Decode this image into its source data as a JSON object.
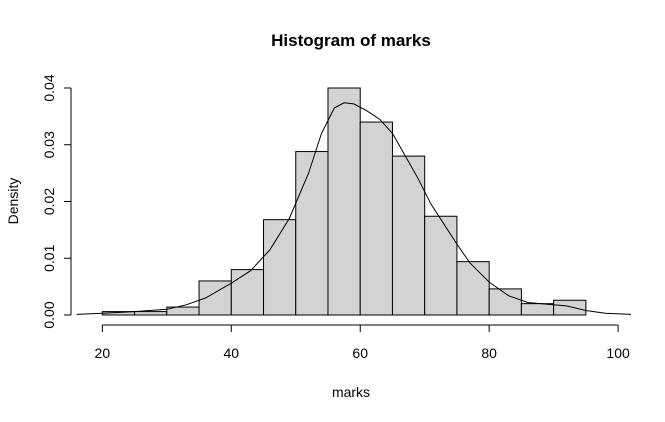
{
  "chart_data": {
    "type": "bar",
    "title": "Histogram of marks",
    "xlabel": "marks",
    "ylabel": "Density",
    "xlim": [
      17,
      102
    ],
    "ylim": [
      0,
      0.04
    ],
    "x_ticks": [
      20,
      40,
      60,
      80,
      100
    ],
    "x_tick_labels": [
      "20",
      "40",
      "60",
      "80",
      "100"
    ],
    "y_ticks": [
      0,
      0.01,
      0.02,
      0.03,
      0.04
    ],
    "y_tick_labels": [
      "0.00",
      "0.01",
      "0.02",
      "0.03",
      "0.04"
    ],
    "bar_color": "#d3d3d3",
    "bins": [
      {
        "start": 20,
        "end": 25,
        "density": 0.0006
      },
      {
        "start": 25,
        "end": 30,
        "density": 0.0006
      },
      {
        "start": 30,
        "end": 35,
        "density": 0.0014
      },
      {
        "start": 35,
        "end": 40,
        "density": 0.006
      },
      {
        "start": 40,
        "end": 45,
        "density": 0.008
      },
      {
        "start": 45,
        "end": 50,
        "density": 0.0168
      },
      {
        "start": 50,
        "end": 55,
        "density": 0.0288
      },
      {
        "start": 55,
        "end": 60,
        "density": 0.04
      },
      {
        "start": 60,
        "end": 65,
        "density": 0.034
      },
      {
        "start": 65,
        "end": 70,
        "density": 0.028
      },
      {
        "start": 70,
        "end": 75,
        "density": 0.0174
      },
      {
        "start": 75,
        "end": 80,
        "density": 0.0094
      },
      {
        "start": 80,
        "end": 85,
        "density": 0.0046
      },
      {
        "start": 85,
        "end": 90,
        "density": 0.002
      },
      {
        "start": 90,
        "end": 95,
        "density": 0.0026
      }
    ],
    "density_curve": [
      [
        16,
        0.0001
      ],
      [
        20,
        0.0003
      ],
      [
        25,
        0.0006
      ],
      [
        30,
        0.001
      ],
      [
        33,
        0.0018
      ],
      [
        36,
        0.003
      ],
      [
        40,
        0.0056
      ],
      [
        43,
        0.0078
      ],
      [
        46,
        0.0115
      ],
      [
        49,
        0.017
      ],
      [
        52,
        0.025
      ],
      [
        54,
        0.032
      ],
      [
        56,
        0.0365
      ],
      [
        57.5,
        0.0374
      ],
      [
        59,
        0.0372
      ],
      [
        61,
        0.036
      ],
      [
        63,
        0.0345
      ],
      [
        65,
        0.032
      ],
      [
        67,
        0.028
      ],
      [
        69,
        0.024
      ],
      [
        71,
        0.0195
      ],
      [
        73,
        0.016
      ],
      [
        75,
        0.0125
      ],
      [
        77,
        0.0092
      ],
      [
        80,
        0.0058
      ],
      [
        83,
        0.0034
      ],
      [
        86,
        0.0022
      ],
      [
        89,
        0.0019
      ],
      [
        92,
        0.0016
      ],
      [
        95,
        0.0008
      ],
      [
        98,
        0.0003
      ],
      [
        102,
        0.0001
      ]
    ]
  }
}
